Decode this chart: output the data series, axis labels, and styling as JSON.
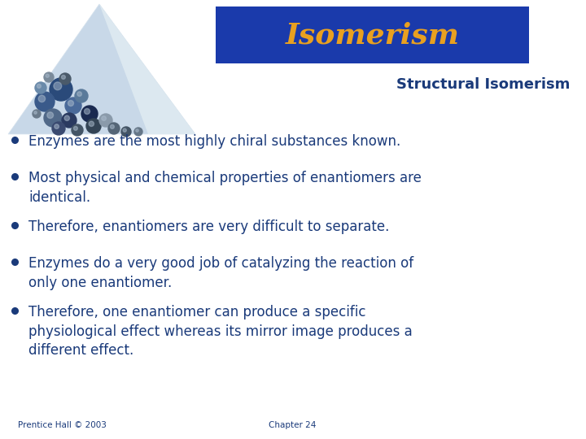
{
  "title": "Isomerism",
  "title_bg_color": "#1a3aab",
  "title_text_color": "#e8a020",
  "subtitle": "Structural Isomerism",
  "subtitle_color": "#1a3a7a",
  "bullet_color": "#1a3a7a",
  "bullets": [
    "Enzymes are the most highly chiral substances known.",
    "Most physical and chemical properties of enantiomers are\nidentical.",
    "Therefore, enantiomers are very difficult to separate.",
    "Enzymes do a very good job of catalyzing the reaction of\nonly one enantiomer.",
    "Therefore, one enantiomer can produce a specific\nphysiological effect whereas its mirror image produces a\ndifferent effect."
  ],
  "footer_left": "Prentice Hall © 2003",
  "footer_right": "Chapter 24",
  "footer_color": "#1a3a7a",
  "bg_color": "#ffffff",
  "triangle_color": "#c8d8e8",
  "triangle_edge_color": "#d8e4ee"
}
